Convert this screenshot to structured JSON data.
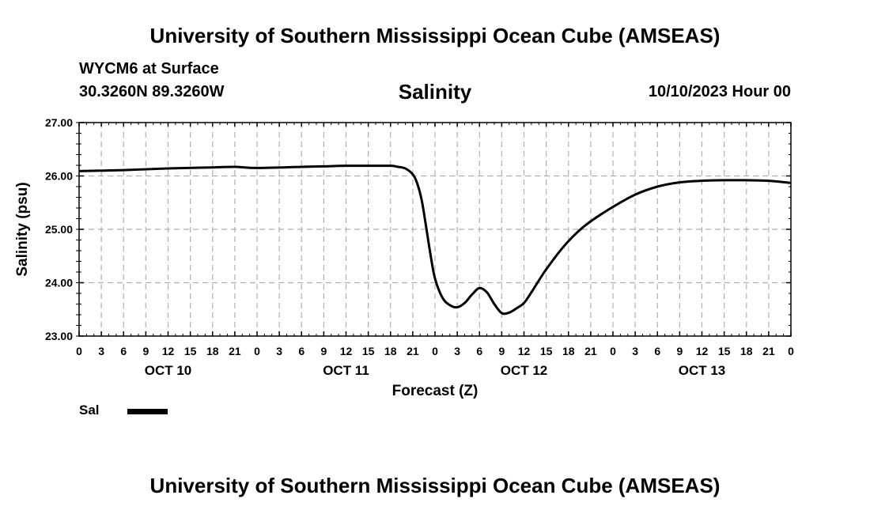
{
  "header": {
    "top_title": "University of Southern Mississippi Ocean Cube (AMSEAS)",
    "station": "WYCM6 at Surface",
    "coords": "30.3260N  89.3260W",
    "variable_title": "Salinity",
    "date": "10/10/2023 Hour 00"
  },
  "footer": {
    "bottom_title": "University of Southern Mississippi Ocean Cube (AMSEAS)"
  },
  "legend": {
    "label": "Sal",
    "color": "#000000"
  },
  "chart_data": {
    "type": "line",
    "title": "Salinity",
    "xlabel": "Forecast (Z)",
    "ylabel": "Salinity (psu)",
    "xlim": [
      0,
      96
    ],
    "ylim": [
      23.0,
      27.0
    ],
    "y_ticks": [
      "23.00",
      "24.00",
      "25.00",
      "26.00",
      "27.00"
    ],
    "y_tick_values": [
      23,
      24,
      25,
      26,
      27
    ],
    "x_tick_hours": [
      0,
      3,
      6,
      9,
      12,
      15,
      18,
      21,
      24,
      27,
      30,
      33,
      36,
      39,
      42,
      45,
      48,
      51,
      54,
      57,
      60,
      63,
      66,
      69,
      72,
      75,
      78,
      81,
      84,
      87,
      90,
      93,
      96
    ],
    "x_tick_labels": [
      "0",
      "3",
      "6",
      "9",
      "12",
      "15",
      "18",
      "21",
      "0",
      "3",
      "6",
      "9",
      "12",
      "15",
      "18",
      "21",
      "0",
      "3",
      "6",
      "9",
      "12",
      "15",
      "18",
      "21",
      "0",
      "3",
      "6",
      "9",
      "12",
      "15",
      "18",
      "21",
      "0"
    ],
    "day_labels": [
      {
        "label": "OCT 10",
        "hour": 12
      },
      {
        "label": "OCT 11",
        "hour": 36
      },
      {
        "label": "OCT 12",
        "hour": 60
      },
      {
        "label": "OCT 13",
        "hour": 84
      }
    ],
    "grid": true,
    "series": [
      {
        "name": "Sal",
        "color": "#000000",
        "x": [
          0,
          6,
          12,
          18,
          21,
          24,
          30,
          33,
          36,
          39,
          42,
          43,
          44,
          45,
          45.6,
          46.2,
          46.8,
          47.4,
          48,
          49,
          50,
          51,
          52,
          53,
          54,
          55,
          56,
          57,
          58,
          59,
          60,
          61,
          62,
          63,
          65,
          67,
          69,
          72,
          75,
          78,
          81,
          84,
          87,
          90,
          93,
          96
        ],
        "values": [
          26.09,
          26.11,
          26.14,
          26.16,
          26.17,
          26.15,
          26.17,
          26.18,
          26.19,
          26.19,
          26.19,
          26.17,
          26.14,
          26.03,
          25.86,
          25.55,
          25.05,
          24.52,
          24.08,
          23.72,
          23.58,
          23.54,
          23.62,
          23.78,
          23.9,
          23.82,
          23.6,
          23.43,
          23.44,
          23.52,
          23.62,
          23.82,
          24.04,
          24.25,
          24.62,
          24.92,
          25.15,
          25.42,
          25.65,
          25.8,
          25.88,
          25.91,
          25.92,
          25.92,
          25.91,
          25.87
        ]
      }
    ]
  }
}
